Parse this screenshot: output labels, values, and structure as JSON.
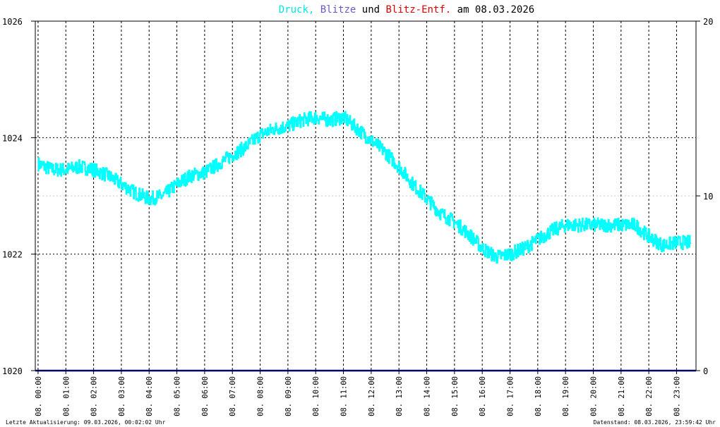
{
  "chart_data": {
    "type": "line",
    "title": {
      "parts": [
        {
          "text": "Druck",
          "color": "#00e5e5"
        },
        {
          "text": ", ",
          "color": "#00e5e5"
        },
        {
          "text": "Blitze",
          "color": "#6a5acd"
        },
        {
          "text": " und ",
          "color": "#000000"
        },
        {
          "text": "Blitz-Entf.",
          "color": "#e00000"
        },
        {
          "text": " am 08.03.2026",
          "color": "#000000"
        }
      ]
    },
    "y_left": {
      "min": 1020,
      "max": 1026,
      "ticks": [
        "1020",
        "1022",
        "1024",
        "1026"
      ]
    },
    "y_right": {
      "min": 0,
      "max": 20,
      "ticks": [
        "0",
        "10",
        "20"
      ],
      "tick_colors": [
        "#000000",
        "#e00000",
        "#000000"
      ]
    },
    "x_ticks": [
      "08. 00:00",
      "08. 01:00",
      "08. 02:00",
      "08. 03:00",
      "08. 04:00",
      "08. 05:00",
      "08. 06:00",
      "08. 07:00",
      "08. 08:00",
      "08. 09:00",
      "08. 10:00",
      "08. 11:00",
      "08. 12:00",
      "08. 13:00",
      "08. 14:00",
      "08. 15:00",
      "08. 16:00",
      "08. 17:00",
      "08. 18:00",
      "08. 19:00",
      "08. 20:00",
      "08. 21:00",
      "08. 22:00",
      "08. 23:00"
    ],
    "x_range_hours": [
      -0.1,
      23.7
    ],
    "grid": true,
    "series": [
      {
        "name": "Druck",
        "color": "#00ffff",
        "x_hours": [
          0.0,
          0.5,
          1.0,
          1.5,
          2.0,
          2.5,
          3.0,
          3.5,
          4.0,
          4.5,
          5.0,
          5.5,
          6.0,
          6.5,
          7.0,
          7.5,
          8.0,
          8.5,
          9.0,
          9.5,
          10.0,
          10.5,
          11.0,
          11.5,
          12.0,
          12.5,
          13.0,
          13.5,
          14.0,
          14.5,
          15.0,
          15.5,
          16.0,
          16.5,
          17.0,
          17.5,
          18.0,
          18.5,
          19.0,
          19.5,
          20.0,
          20.5,
          21.0,
          21.5,
          22.0,
          22.5,
          23.0,
          23.5
        ],
        "values": [
          1023.55,
          1023.45,
          1023.45,
          1023.5,
          1023.45,
          1023.35,
          1023.2,
          1023.05,
          1022.95,
          1023.0,
          1023.2,
          1023.35,
          1023.4,
          1023.55,
          1023.7,
          1023.85,
          1024.05,
          1024.15,
          1024.2,
          1024.3,
          1024.35,
          1024.3,
          1024.35,
          1024.15,
          1023.95,
          1023.75,
          1023.5,
          1023.2,
          1022.95,
          1022.7,
          1022.55,
          1022.35,
          1022.1,
          1021.95,
          1022.0,
          1022.1,
          1022.25,
          1022.4,
          1022.5,
          1022.5,
          1022.5,
          1022.5,
          1022.5,
          1022.5,
          1022.3,
          1022.15,
          1022.2,
          1022.2
        ],
        "jitter": 0.12
      },
      {
        "name": "Blitze",
        "color": "#000066",
        "axis": "right",
        "x_hours": [
          -0.1,
          23.7
        ],
        "values": [
          0,
          0
        ]
      }
    ]
  },
  "footer": {
    "left": "Letzte Aktualisierung: 09.03.2026, 00:02:02 Uhr",
    "right": "Datenstand: 08.03.2026, 23:59:42 Uhr"
  }
}
